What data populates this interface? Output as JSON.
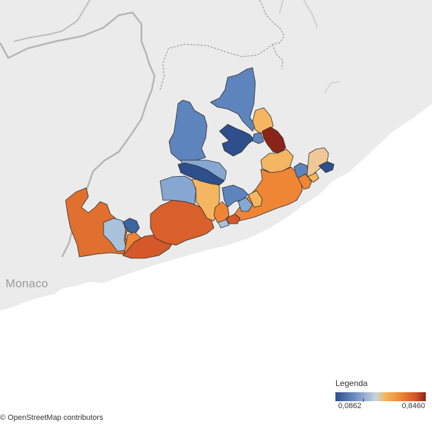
{
  "map": {
    "place_label": "Monaco",
    "attribution": "© OpenStreetMap contributors"
  },
  "legend": {
    "title": "Legenda",
    "min_label": "0,0862",
    "max_label": "0,8460",
    "min_value": 0.0862,
    "max_value": 0.846,
    "colors": [
      "#2e4f8c",
      "#6d8fc4",
      "#c9d3dc",
      "#f4b660",
      "#ee8636",
      "#d4582a",
      "#8a2418"
    ]
  },
  "colors": {
    "land": "#ebebeb",
    "sea": "#ffffff",
    "road": "#c4c4c4",
    "border": "#9a9a9a"
  }
}
